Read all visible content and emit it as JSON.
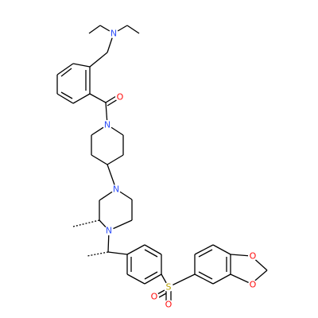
{
  "atoms": [
    {
      "label": "N"
    },
    {
      "label": "O"
    },
    {
      "label": "N"
    },
    {
      "label": "N"
    },
    {
      "label": "N"
    },
    {
      "label": "S"
    },
    {
      "label": "O"
    },
    {
      "label": "O"
    },
    {
      "label": "O"
    },
    {
      "label": "O"
    }
  ]
}
